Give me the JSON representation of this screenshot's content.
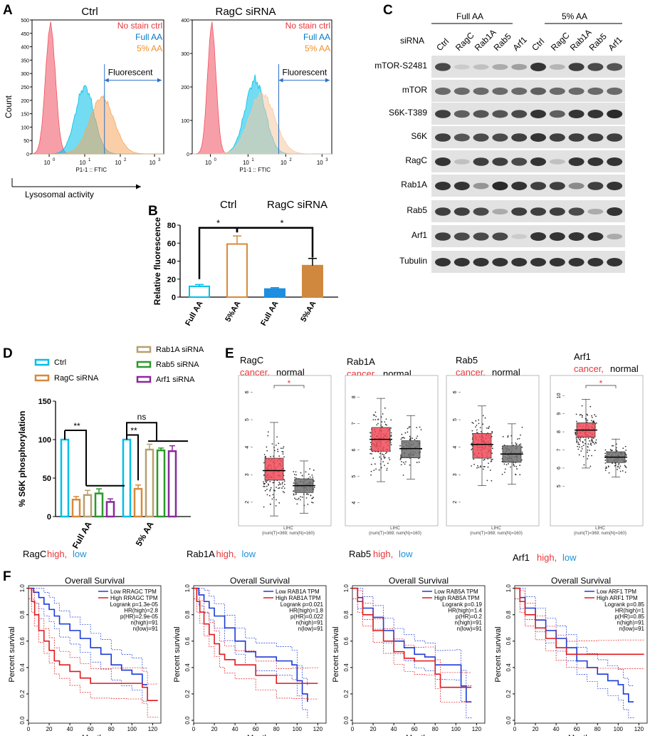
{
  "colors": {
    "red": "#e8373a",
    "blue": "#0078c8",
    "orange": "#f0902a",
    "cyan": "#00bfe8",
    "tan": "#d88a3a",
    "olive": "#b8a070",
    "green": "#2a9a2a",
    "purple": "#8a2a9a",
    "box_red": "#f04a58",
    "box_gray": "#707070"
  },
  "panelA": {
    "label": "A",
    "xaxis_title": "Lysosomal activity",
    "ylabel": "Count",
    "legend": [
      "No stain ctrl",
      "Full AA",
      "5% AA"
    ],
    "fluor_label": "Fluorescent",
    "xlabel": "P1-1 :: FTIC",
    "left": {
      "title": "Ctrl",
      "ylim": [
        0,
        500
      ],
      "yticks": [
        "0",
        "50",
        "100",
        "150",
        "200",
        "250",
        "300",
        "350",
        "400",
        "450",
        "500"
      ]
    },
    "right": {
      "title": "RagC siRNA",
      "ylim": [
        0,
        400
      ],
      "yticks": [
        "0",
        "100",
        "200",
        "300",
        "400"
      ]
    },
    "x_base": "10",
    "x_exps": [
      "0",
      "1",
      "2",
      "3"
    ]
  },
  "panelB": {
    "label": "B",
    "group_ctrl": "Ctrl",
    "group_ragc": "RagC siRNA",
    "sig": [
      "*",
      "*"
    ],
    "chart_data": {
      "type": "bar",
      "categories": [
        "Full AA",
        "5%AA",
        "Full AA",
        "5%AA"
      ],
      "values": [
        12,
        59,
        9,
        35
      ],
      "errors": [
        2,
        9,
        1.5,
        8
      ],
      "ylabel": "Relative fluorescence",
      "ylim": [
        0,
        80
      ],
      "yticks": [
        "0",
        "20",
        "40",
        "60",
        "80"
      ]
    }
  },
  "panelC": {
    "label": "C",
    "group_full": "Full AA",
    "group_5": "5% AA",
    "sirna_label": "siRNA",
    "lanes": [
      "Ctrl",
      "RagC",
      "Rab1A",
      "Rab5",
      "Arf1",
      "Ctrl",
      "RagC",
      "Rab1A",
      "Rab5",
      "Arf1"
    ],
    "rows": [
      {
        "name": "mTOR-S2481",
        "intensity": [
          0.75,
          0.15,
          0.2,
          0.3,
          0.35,
          0.85,
          0.25,
          0.8,
          0.75,
          0.7
        ]
      },
      {
        "name": "mTOR",
        "intensity": [
          0.6,
          0.6,
          0.6,
          0.6,
          0.6,
          0.65,
          0.6,
          0.6,
          0.6,
          0.6
        ]
      },
      {
        "name": "S6K-T389",
        "intensity": [
          0.8,
          0.65,
          0.7,
          0.7,
          0.75,
          0.85,
          0.65,
          0.85,
          0.85,
          0.9
        ]
      },
      {
        "name": "S6K",
        "intensity": [
          0.8,
          0.7,
          0.75,
          0.75,
          0.8,
          0.85,
          0.8,
          0.8,
          0.8,
          0.8
        ]
      },
      {
        "name": "RagC",
        "intensity": [
          0.85,
          0.2,
          0.8,
          0.8,
          0.75,
          0.85,
          0.2,
          0.85,
          0.85,
          0.85
        ]
      },
      {
        "name": "Rab1A",
        "intensity": [
          0.85,
          0.85,
          0.4,
          0.9,
          0.85,
          0.8,
          0.8,
          0.45,
          0.8,
          0.85
        ]
      },
      {
        "name": "Rab5",
        "intensity": [
          0.8,
          0.8,
          0.75,
          0.3,
          0.8,
          0.8,
          0.8,
          0.75,
          0.3,
          0.85
        ]
      },
      {
        "name": "Arf1",
        "intensity": [
          0.8,
          0.75,
          0.75,
          0.75,
          0.15,
          0.85,
          0.85,
          0.85,
          0.85,
          0.3
        ]
      },
      {
        "name": "Tubulin",
        "intensity": [
          0.85,
          0.85,
          0.85,
          0.85,
          0.85,
          0.85,
          0.85,
          0.85,
          0.85,
          0.85
        ]
      }
    ]
  },
  "panelD": {
    "label": "D",
    "legend": [
      "Ctrl",
      "RagC siRNA",
      "Rab1A siRNA",
      "Rab5 siRNA",
      "Arf1 siRNA"
    ],
    "sig_full": "**",
    "sig_5_ragc": "**",
    "sig_5_ns": "ns",
    "chart_data": {
      "type": "bar",
      "categories": [
        "Full AA",
        "5% AA"
      ],
      "series": [
        {
          "name": "Ctrl",
          "values": [
            100,
            100
          ],
          "errors": [
            0,
            0
          ]
        },
        {
          "name": "RagC siRNA",
          "values": [
            22,
            36
          ],
          "errors": [
            4,
            5
          ]
        },
        {
          "name": "Rab1A siRNA",
          "values": [
            28,
            87
          ],
          "errors": [
            6,
            7
          ]
        },
        {
          "name": "Rab5 siRNA",
          "values": [
            30,
            86
          ],
          "errors": [
            6,
            3
          ]
        },
        {
          "name": "Arf1 siRNA",
          "values": [
            19,
            85
          ],
          "errors": [
            4,
            7
          ]
        }
      ],
      "ylabel": "% S6K phosphorylation",
      "ylim": [
        0,
        150
      ],
      "yticks": [
        "0",
        "50",
        "100",
        "150"
      ]
    }
  },
  "panelE": {
    "label": "E",
    "cancer_word": "cancer,",
    "normal_word": "normal",
    "xlabel": "LIHC",
    "count": "(num(T)=369; num(N)=160)",
    "chart_data": {
      "type": "box",
      "genes": [
        {
          "name": "RagC",
          "sig": "*",
          "yticks": [
            "2",
            "3",
            "4",
            "5",
            "6"
          ],
          "ylim": [
            1.4,
            6.4
          ],
          "tumor": {
            "q1": 2.8,
            "median": 3.15,
            "q3": 3.6,
            "lo": 1.5,
            "hi": 4.9
          },
          "normal": {
            "q1": 2.35,
            "median": 2.6,
            "q3": 2.85,
            "lo": 1.6,
            "hi": 3.5
          }
        },
        {
          "name": "Rab1A",
          "sig": "",
          "yticks": [
            "4",
            "5",
            "6",
            "7",
            "8"
          ],
          "ylim": [
            3.4,
            8.6
          ],
          "tumor": {
            "q1": 5.95,
            "median": 6.4,
            "q3": 6.85,
            "lo": 4.8,
            "hi": 7.95
          },
          "normal": {
            "q1": 5.7,
            "median": 6.05,
            "q3": 6.35,
            "lo": 4.9,
            "hi": 7.3
          }
        },
        {
          "name": "Rab5",
          "sig": "",
          "yticks": [
            "2",
            "3",
            "4",
            "5",
            "6"
          ],
          "ylim": [
            1.4,
            6.4
          ],
          "tumor": {
            "q1": 3.6,
            "median": 4.1,
            "q3": 4.5,
            "lo": 2.6,
            "hi": 5.5
          },
          "normal": {
            "q1": 3.45,
            "median": 3.75,
            "q3": 4.05,
            "lo": 2.65,
            "hi": 4.85
          }
        },
        {
          "name": "Arf1",
          "sig": "*",
          "yticks": [
            "5",
            "6",
            "7",
            "8",
            "9",
            "10"
          ],
          "ylim": [
            3.2,
            10.8
          ],
          "tumor": {
            "q1": 7.7,
            "median": 8.1,
            "q3": 8.5,
            "lo": 6.0,
            "hi": 9.8
          },
          "normal": {
            "q1": 6.3,
            "median": 6.6,
            "q3": 6.9,
            "lo": 5.5,
            "hi": 7.6
          }
        }
      ]
    }
  },
  "panelF": {
    "label": "F",
    "title": "Overall Survival",
    "high_word": "high,",
    "low_word": "low",
    "xlabel": "Months",
    "ylabel": "Percent survival",
    "xticks": [
      "0",
      "20",
      "40",
      "60",
      "80",
      "100",
      "120"
    ],
    "yticks": [
      "0.0",
      "0.2",
      "0.4",
      "0.6",
      "0.8",
      "1.0"
    ],
    "chart_data": {
      "type": "line",
      "plots": [
        {
          "gene": "RagC",
          "legend_low": "Low RRAGC TPM",
          "legend_high": "High RRAGC TPM",
          "stats": [
            "Logrank p=1.3e-05",
            "HR(high)=2.8",
            "p(HR)=2.9e-05",
            "n(high)=91",
            "n(low)=91"
          ],
          "low": [
            [
              0,
              1
            ],
            [
              5,
              0.97
            ],
            [
              10,
              0.93
            ],
            [
              15,
              0.88
            ],
            [
              20,
              0.84
            ],
            [
              25,
              0.79
            ],
            [
              30,
              0.73
            ],
            [
              40,
              0.68
            ],
            [
              50,
              0.62
            ],
            [
              60,
              0.55
            ],
            [
              70,
              0.5
            ],
            [
              80,
              0.42
            ],
            [
              90,
              0.38
            ],
            [
              100,
              0.35
            ],
            [
              110,
              0.27
            ],
            [
              115,
              0.27
            ]
          ],
          "high": [
            [
              0,
              1
            ],
            [
              3,
              0.9
            ],
            [
              6,
              0.8
            ],
            [
              10,
              0.68
            ],
            [
              15,
              0.6
            ],
            [
              20,
              0.53
            ],
            [
              25,
              0.45
            ],
            [
              30,
              0.42
            ],
            [
              40,
              0.37
            ],
            [
              50,
              0.32
            ],
            [
              60,
              0.28
            ],
            [
              80,
              0.28
            ],
            [
              95,
              0.28
            ],
            [
              110,
              0.25
            ],
            [
              115,
              0.15
            ],
            [
              125,
              0.15
            ]
          ]
        },
        {
          "gene": "Rab1A",
          "legend_low": "Low RAB1A TPM",
          "legend_high": "High RAB1A TPM",
          "stats": [
            "Logrank p=0.021",
            "HR(high)=1.8",
            "p(HR)=0.022",
            "n(high)=91",
            "n(low)=91"
          ],
          "low": [
            [
              0,
              1
            ],
            [
              5,
              0.95
            ],
            [
              10,
              0.9
            ],
            [
              15,
              0.85
            ],
            [
              20,
              0.79
            ],
            [
              30,
              0.7
            ],
            [
              40,
              0.6
            ],
            [
              50,
              0.52
            ],
            [
              60,
              0.48
            ],
            [
              80,
              0.45
            ],
            [
              95,
              0.42
            ],
            [
              100,
              0.3
            ],
            [
              105,
              0.2
            ],
            [
              110,
              0.14
            ]
          ],
          "high": [
            [
              0,
              1
            ],
            [
              3,
              0.9
            ],
            [
              6,
              0.82
            ],
            [
              10,
              0.73
            ],
            [
              15,
              0.65
            ],
            [
              20,
              0.58
            ],
            [
              25,
              0.5
            ],
            [
              30,
              0.46
            ],
            [
              40,
              0.42
            ],
            [
              60,
              0.34
            ],
            [
              80,
              0.28
            ],
            [
              95,
              0.28
            ],
            [
              110,
              0.28
            ],
            [
              120,
              0.28
            ]
          ]
        },
        {
          "gene": "Rab5",
          "legend_low": "Low RAB5A TPM",
          "legend_high": "High RAB5A TPM",
          "stats": [
            "Logrank p=0.19",
            "HR(high)=1.4",
            "p(HR)=0.2",
            "n(high)=91",
            "n(low)=91"
          ],
          "low": [
            [
              0,
              1
            ],
            [
              5,
              0.93
            ],
            [
              10,
              0.85
            ],
            [
              20,
              0.78
            ],
            [
              30,
              0.68
            ],
            [
              40,
              0.6
            ],
            [
              50,
              0.55
            ],
            [
              60,
              0.5
            ],
            [
              70,
              0.48
            ],
            [
              80,
              0.42
            ],
            [
              90,
              0.42
            ],
            [
              100,
              0.42
            ],
            [
              105,
              0.26
            ],
            [
              110,
              0.14
            ],
            [
              115,
              0.14
            ]
          ],
          "high": [
            [
              0,
              1
            ],
            [
              5,
              0.9
            ],
            [
              10,
              0.8
            ],
            [
              20,
              0.68
            ],
            [
              30,
              0.6
            ],
            [
              40,
              0.52
            ],
            [
              50,
              0.47
            ],
            [
              60,
              0.45
            ],
            [
              70,
              0.45
            ],
            [
              80,
              0.35
            ],
            [
              85,
              0.25
            ],
            [
              115,
              0.25
            ]
          ]
        },
        {
          "gene": "Arf1",
          "legend_low": "Low ARF1 TPM",
          "legend_high": "High ARF1 TPM",
          "stats": [
            "Logrank p=0.85",
            "HR(high)=1",
            "p(HR)=0.85",
            "n(high)=91",
            "n(low)=91"
          ],
          "low": [
            [
              0,
              1
            ],
            [
              5,
              0.93
            ],
            [
              10,
              0.85
            ],
            [
              20,
              0.76
            ],
            [
              30,
              0.68
            ],
            [
              40,
              0.62
            ],
            [
              50,
              0.55
            ],
            [
              60,
              0.45
            ],
            [
              70,
              0.4
            ],
            [
              80,
              0.35
            ],
            [
              90,
              0.3
            ],
            [
              100,
              0.27
            ],
            [
              105,
              0.2
            ],
            [
              110,
              0.14
            ],
            [
              115,
              0.14
            ]
          ],
          "high": [
            [
              0,
              1
            ],
            [
              5,
              0.9
            ],
            [
              10,
              0.8
            ],
            [
              20,
              0.7
            ],
            [
              30,
              0.62
            ],
            [
              40,
              0.55
            ],
            [
              50,
              0.5
            ],
            [
              60,
              0.5
            ],
            [
              80,
              0.5
            ],
            [
              100,
              0.5
            ],
            [
              125,
              0.5
            ]
          ]
        }
      ]
    }
  }
}
